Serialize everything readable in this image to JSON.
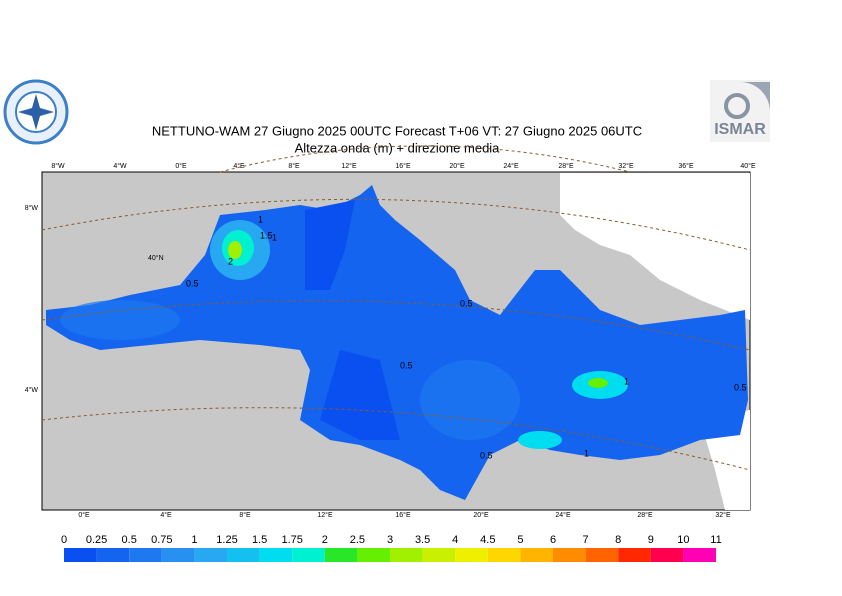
{
  "header": {
    "title": "NETTUNO-WAM  27   Giugno  2025 00UTC Forecast T+06 VT: 27   Giugno  2025 06UTC",
    "subtitle": "Altezza onda (m) + direzione media",
    "logo_right": "ISMAR"
  },
  "map": {
    "top_labels": [
      "8°W",
      "4°W",
      "0°E",
      "4°E",
      "8°E",
      "12°E",
      "16°E",
      "20°E",
      "24°E",
      "28°E",
      "32°E",
      "36°E",
      "40°E"
    ],
    "bottom_labels": [
      "0°E",
      "4°E",
      "8°E",
      "12°E",
      "16°E",
      "20°E",
      "24°E",
      "28°E",
      "32°E"
    ],
    "left_labels": [
      "8°W",
      "4°W"
    ],
    "inner_labels": [
      "40°N"
    ],
    "contour_labels": [
      "1.5",
      "1",
      "2",
      "0.5",
      "0.5",
      "0.5",
      "1",
      "0.5",
      "1",
      "0.5",
      "1"
    ]
  },
  "colorbar": {
    "labels": [
      "0",
      "0.25",
      "0.5",
      "0.75",
      "1",
      "1.25",
      "1.5",
      "1.75",
      "2",
      "2.5",
      "3",
      "3.5",
      "4",
      "4.5",
      "5",
      "6",
      "7",
      "8",
      "9",
      "10",
      "11"
    ],
    "colors": [
      "#0a50f0",
      "#1464f0",
      "#1e78f0",
      "#2890f0",
      "#28a8f0",
      "#14c0f0",
      "#00dcf0",
      "#00f0d2",
      "#28e628",
      "#64f000",
      "#a0f000",
      "#c8f000",
      "#eef000",
      "#ffd700",
      "#ffb400",
      "#ff8c00",
      "#ff6400",
      "#ff2800",
      "#ff0050",
      "#ff00b4"
    ]
  }
}
